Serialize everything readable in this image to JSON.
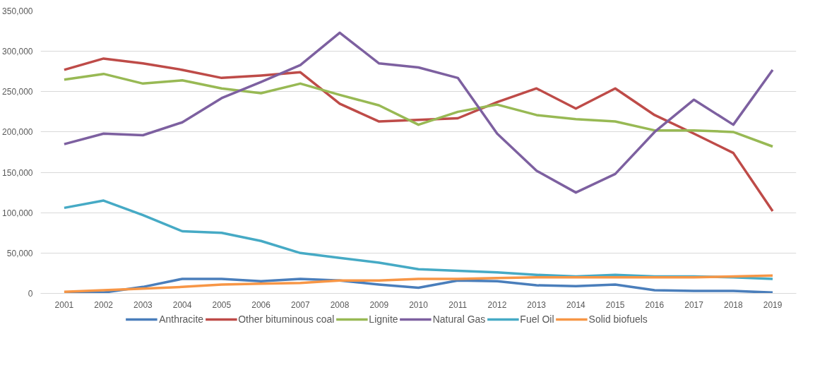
{
  "chart_data": {
    "type": "line",
    "categories": [
      "2001",
      "2002",
      "2003",
      "2004",
      "2005",
      "2006",
      "2007",
      "2008",
      "2009",
      "2010",
      "2011",
      "2012",
      "2013",
      "2014",
      "2015",
      "2016",
      "2017",
      "2018",
      "2019"
    ],
    "series": [
      {
        "name": "Anthracite",
        "color": "#4a7ebb",
        "values": [
          1000,
          1000,
          8000,
          18000,
          18000,
          15000,
          18000,
          16000,
          11000,
          7000,
          16000,
          15000,
          10000,
          9000,
          11000,
          4000,
          3000,
          3000,
          1000
        ]
      },
      {
        "name": "Other bituminous coal",
        "color": "#be4b48",
        "values": [
          277000,
          291000,
          285000,
          277000,
          267000,
          270000,
          274000,
          235000,
          213000,
          215000,
          217000,
          237000,
          254000,
          229000,
          254000,
          221000,
          198000,
          174000,
          102000
        ]
      },
      {
        "name": "Lignite",
        "color": "#98b954",
        "values": [
          265000,
          272000,
          260000,
          264000,
          254000,
          248000,
          260000,
          246000,
          233000,
          209000,
          225000,
          234000,
          221000,
          216000,
          213000,
          202000,
          202000,
          200000,
          182000
        ]
      },
      {
        "name": "Natural Gas",
        "color": "#7d60a0",
        "values": [
          185000,
          198000,
          196000,
          212000,
          242000,
          262000,
          283000,
          323000,
          285000,
          280000,
          267000,
          198000,
          152000,
          125000,
          148000,
          200000,
          240000,
          209000,
          277000
        ]
      },
      {
        "name": "Fuel Oil",
        "color": "#46aac5",
        "values": [
          106000,
          115000,
          97000,
          77000,
          75000,
          65000,
          50000,
          44000,
          38000,
          30000,
          28000,
          26000,
          23000,
          21000,
          23000,
          21000,
          21000,
          20000,
          18000
        ]
      },
      {
        "name": "Solid biofuels",
        "color": "#f79646",
        "values": [
          2000,
          4000,
          6000,
          8000,
          11000,
          12000,
          13000,
          16000,
          16000,
          18000,
          18000,
          19000,
          20000,
          20000,
          20000,
          20000,
          20000,
          21000,
          22000
        ]
      }
    ],
    "ylim": [
      0,
      350000
    ],
    "yticks": [
      {
        "value": 0,
        "label": "0"
      },
      {
        "value": 50000,
        "label": "50,000"
      },
      {
        "value": 100000,
        "label": "100,000"
      },
      {
        "value": 150000,
        "label": "150,000"
      },
      {
        "value": 200000,
        "label": "200,000"
      },
      {
        "value": 250000,
        "label": "250,000"
      },
      {
        "value": 300000,
        "label": "300,000"
      },
      {
        "value": 350000,
        "label": "350,000"
      }
    ],
    "grid": "y",
    "legend": "bottom",
    "marker": "none",
    "line_style": "solid"
  }
}
